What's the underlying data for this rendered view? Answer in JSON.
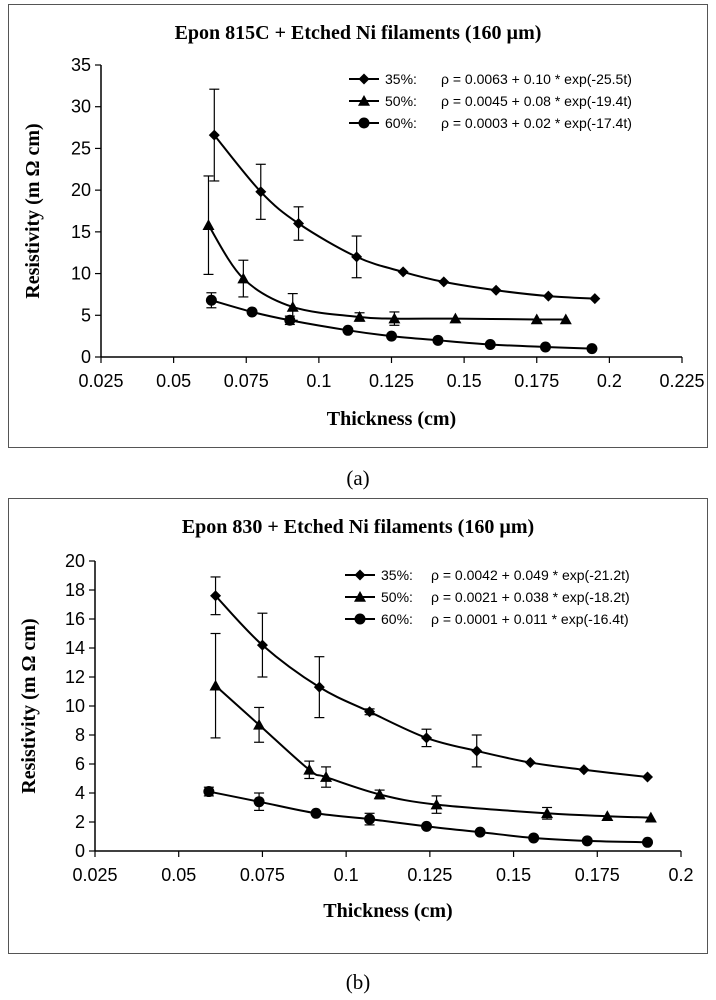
{
  "chart_data": [
    {
      "id": "a",
      "type": "line",
      "title": "Epon 815C + Etched Ni filaments (160 µm)",
      "xlabel": "Thickness (cm)",
      "ylabel": "Resistivity (m Ω cm)",
      "xlim": [
        0.025,
        0.225
      ],
      "ylim": [
        0,
        35
      ],
      "xticks": [
        "0.025",
        "0.05",
        "0.075",
        "0.1",
        "0.125",
        "0.15",
        "0.175",
        "0.2",
        "0.225"
      ],
      "yticks": [
        "0",
        "5",
        "10",
        "15",
        "20",
        "25",
        "30",
        "35"
      ],
      "caption": "(a)",
      "series": [
        {
          "name": "35%:",
          "equation": "ρ = 0.0063 + 0.10 * exp(-25.5t)",
          "marker": "diamond",
          "x": [
            0.064,
            0.08,
            0.093,
            0.113,
            0.129,
            0.143,
            0.161,
            0.179,
            0.195
          ],
          "y": [
            26.6,
            19.8,
            16.0,
            12.0,
            10.2,
            9.0,
            8.0,
            7.3,
            7.0
          ],
          "yerr": [
            5.5,
            3.3,
            2.0,
            2.5,
            0,
            0,
            0,
            0,
            0
          ]
        },
        {
          "name": "50%:",
          "equation": "ρ = 0.0045 + 0.08 * exp(-19.4t)",
          "marker": "triangle",
          "x": [
            0.062,
            0.074,
            0.091,
            0.114,
            0.126,
            0.147,
            0.175,
            0.185
          ],
          "y": [
            15.8,
            9.4,
            6.0,
            4.8,
            4.6,
            4.6,
            4.5,
            4.5
          ],
          "yerr": [
            5.9,
            2.2,
            1.6,
            0.5,
            0.8,
            0,
            0,
            0
          ]
        },
        {
          "name": "60%:",
          "equation": "ρ = 0.0003 + 0.02 * exp(-17.4t)",
          "marker": "circle",
          "x": [
            0.063,
            0.077,
            0.09,
            0.11,
            0.125,
            0.141,
            0.159,
            0.178,
            0.194
          ],
          "y": [
            6.8,
            5.4,
            4.4,
            3.2,
            2.5,
            2.0,
            1.5,
            1.2,
            1.0
          ],
          "yerr": [
            0.9,
            0,
            0.5,
            0,
            0,
            0,
            0,
            0,
            0
          ]
        }
      ]
    },
    {
      "id": "b",
      "type": "line",
      "title": "Epon 830 + Etched Ni filaments (160 µm)",
      "xlabel": "Thickness (cm)",
      "ylabel": "Resistivity (m Ω cm)",
      "xlim": [
        0.025,
        0.2
      ],
      "ylim": [
        0,
        20
      ],
      "xticks": [
        "0.025",
        "0.05",
        "0.075",
        "0.1",
        "0.125",
        "0.15",
        "0.175",
        "0.2"
      ],
      "yticks": [
        "0",
        "2",
        "4",
        "6",
        "8",
        "10",
        "12",
        "14",
        "16",
        "18",
        "20"
      ],
      "caption": "(b)",
      "series": [
        {
          "name": "35%:",
          "equation": "ρ = 0.0042 + 0.049 * exp(-21.2t)",
          "marker": "diamond",
          "x": [
            0.061,
            0.075,
            0.092,
            0.107,
            0.124,
            0.139,
            0.155,
            0.171,
            0.19
          ],
          "y": [
            17.6,
            14.2,
            11.3,
            9.6,
            7.8,
            6.9,
            6.1,
            5.6,
            5.1
          ],
          "yerr": [
            1.3,
            2.2,
            2.1,
            0.2,
            0.6,
            1.1,
            0,
            0,
            0
          ]
        },
        {
          "name": "50%:",
          "equation": "ρ = 0.0021 + 0.038 * exp(-18.2t)",
          "marker": "triangle",
          "x": [
            0.061,
            0.074,
            0.089,
            0.094,
            0.11,
            0.127,
            0.16,
            0.178,
            0.191
          ],
          "y": [
            11.4,
            8.7,
            5.6,
            5.1,
            3.9,
            3.2,
            2.6,
            2.4,
            2.3
          ],
          "yerr": [
            3.6,
            1.2,
            0.6,
            0.7,
            0.3,
            0.6,
            0.4,
            0,
            0
          ]
        },
        {
          "name": "60%:",
          "equation": "ρ = 0.0001 + 0.011 * exp(-16.4t)",
          "marker": "circle",
          "x": [
            0.059,
            0.074,
            0.091,
            0.107,
            0.124,
            0.14,
            0.156,
            0.172,
            0.19
          ],
          "y": [
            4.1,
            3.4,
            2.6,
            2.2,
            1.7,
            1.3,
            0.9,
            0.7,
            0.6
          ],
          "yerr": [
            0.3,
            0.6,
            0,
            0.4,
            0,
            0,
            0,
            0,
            0
          ]
        }
      ]
    }
  ]
}
